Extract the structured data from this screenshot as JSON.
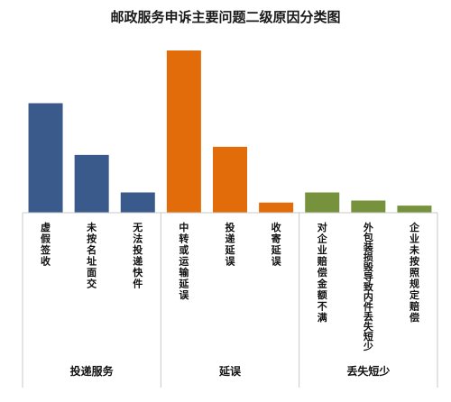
{
  "chart_data": {
    "type": "bar",
    "title": "邮政服务申诉主要问题二级原因分类图",
    "xlabel": "",
    "ylabel": "",
    "ylim": [
      0,
      160
    ],
    "grid": false,
    "legend": "none",
    "categories": [
      "虚假签收",
      "未按名址面交",
      "无法投递快件",
      "中转或运输延误",
      "投递延误",
      "收寄延误",
      "对企业赔偿金额不满",
      "外包装损毁导致内件丢失短少",
      "企业未按照规定赔偿"
    ],
    "values": [
      108,
      57,
      20,
      160,
      65,
      10,
      20,
      12,
      7
    ],
    "groups": [
      {
        "name": "投递服务",
        "color": "#3A5A8C",
        "categories": [
          "虚假签收",
          "未按名址面交",
          "无法投递快件"
        ]
      },
      {
        "name": "延误",
        "color": "#E36C0A",
        "categories": [
          "中转或运输延误",
          "投递延误",
          "收寄延误"
        ]
      },
      {
        "name": "丢失短少",
        "color": "#76923C",
        "categories": [
          "对企业赔偿金额不满",
          "外包装损毁导致内件丢失短少",
          "企业未按照规定赔偿"
        ]
      }
    ]
  }
}
